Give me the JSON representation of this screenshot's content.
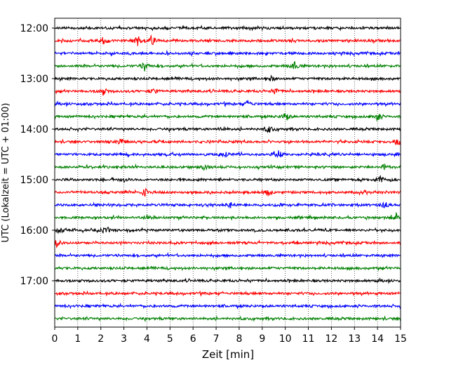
{
  "chart_data": {
    "type": "line",
    "title": "",
    "xlabel": "Zeit  [min]",
    "ylabel": "UTC (Lokalzeit = UTC + 01:00)",
    "xlim": [
      0,
      15
    ],
    "x_ticks": [
      "0",
      "1",
      "2",
      "3",
      "4",
      "5",
      "6",
      "7",
      "8",
      "9",
      "10",
      "11",
      "12",
      "13",
      "14",
      "15"
    ],
    "y_ticks": [
      "12:00",
      "13:00",
      "14:00",
      "15:00",
      "16:00",
      "17:00"
    ],
    "grid": "vertical-dotted",
    "trace_colors": [
      "#000000",
      "#ff0000",
      "#0000ff",
      "#008000"
    ],
    "rows": [
      {
        "time": "12:00",
        "color": "#000000",
        "events": []
      },
      {
        "time": "12:15",
        "color": "#ff0000",
        "events": [
          [
            2.1,
            5
          ],
          [
            3.6,
            7
          ],
          [
            4.2,
            7
          ]
        ]
      },
      {
        "time": "12:30",
        "color": "#0000ff",
        "events": []
      },
      {
        "time": "12:45",
        "color": "#008000",
        "events": [
          [
            3.9,
            7
          ],
          [
            10.4,
            6
          ]
        ]
      },
      {
        "time": "13:00",
        "color": "#000000",
        "events": [
          [
            9.4,
            4
          ]
        ]
      },
      {
        "time": "13:15",
        "color": "#ff0000",
        "events": [
          [
            2.1,
            5
          ],
          [
            4.3,
            4
          ],
          [
            9.6,
            4
          ]
        ]
      },
      {
        "time": "13:30",
        "color": "#0000ff",
        "events": [
          [
            8.4,
            4
          ]
        ]
      },
      {
        "time": "13:45",
        "color": "#008000",
        "events": [
          [
            10.0,
            6
          ],
          [
            14.0,
            6
          ]
        ]
      },
      {
        "time": "14:00",
        "color": "#000000",
        "events": [
          [
            7.3,
            3
          ],
          [
            9.3,
            5
          ]
        ]
      },
      {
        "time": "14:15",
        "color": "#ff0000",
        "events": [
          [
            2.9,
            5
          ],
          [
            14.9,
            8
          ]
        ]
      },
      {
        "time": "14:30",
        "color": "#0000ff",
        "events": [
          [
            7.4,
            3
          ],
          [
            9.7,
            7
          ]
        ]
      },
      {
        "time": "14:45",
        "color": "#008000",
        "events": [
          [
            6.5,
            4
          ],
          [
            14.3,
            4
          ]
        ]
      },
      {
        "time": "15:00",
        "color": "#000000",
        "events": [
          [
            3.0,
            3
          ],
          [
            14.1,
            6
          ]
        ]
      },
      {
        "time": "15:15",
        "color": "#ff0000",
        "events": [
          [
            3.9,
            6
          ],
          [
            9.2,
            7
          ]
        ]
      },
      {
        "time": "15:30",
        "color": "#0000ff",
        "events": [
          [
            7.6,
            4
          ],
          [
            9.8,
            3
          ],
          [
            14.3,
            5
          ]
        ]
      },
      {
        "time": "15:45",
        "color": "#008000",
        "events": [
          [
            4.0,
            4
          ],
          [
            14.8,
            6
          ]
        ]
      },
      {
        "time": "16:00",
        "color": "#000000",
        "events": [
          [
            0.2,
            6
          ],
          [
            2.2,
            5
          ]
        ]
      },
      {
        "time": "16:15",
        "color": "#ff0000",
        "events": [
          [
            0.1,
            5
          ]
        ]
      },
      {
        "time": "16:30",
        "color": "#0000ff",
        "events": []
      },
      {
        "time": "16:45",
        "color": "#008000",
        "events": []
      },
      {
        "time": "17:00",
        "color": "#000000",
        "events": []
      },
      {
        "time": "17:15",
        "color": "#ff0000",
        "events": []
      },
      {
        "time": "17:30",
        "color": "#0000ff",
        "events": []
      },
      {
        "time": "17:45",
        "color": "#008000",
        "events": []
      }
    ]
  }
}
